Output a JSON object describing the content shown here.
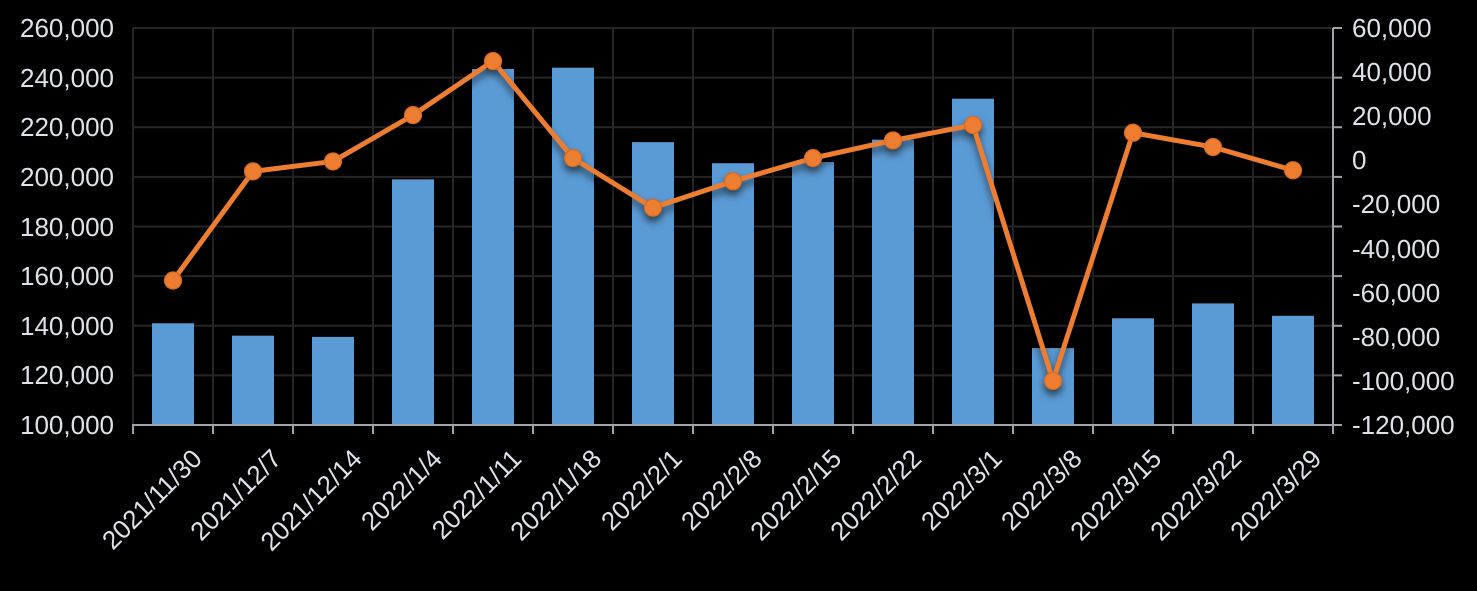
{
  "chart_data": {
    "type": "combo_bar_line",
    "title": "",
    "legend": "none",
    "grid": true,
    "categories": [
      "2021/11/30",
      "2021/12/7",
      "2021/12/14",
      "2022/1/4",
      "2022/1/11",
      "2022/1/18",
      "2022/2/1",
      "2022/2/8",
      "2022/2/15",
      "2022/2/22",
      "2022/3/1",
      "2022/3/8",
      "2022/3/15",
      "2022/3/22",
      "2022/3/29"
    ],
    "series": [
      {
        "name": "bars",
        "type": "bar",
        "axis": "left",
        "color": "#5B9BD5",
        "values": [
          141000,
          136000,
          135500,
          199000,
          243500,
          244000,
          214000,
          205500,
          206000,
          215000,
          231500,
          131000,
          143000,
          149000,
          144000
        ]
      },
      {
        "name": "line",
        "type": "line",
        "axis": "right",
        "color": "#ED7D31",
        "marker": "circle",
        "values": [
          -54500,
          -5000,
          -500,
          20500,
          45000,
          1000,
          -21500,
          -9500,
          1000,
          9000,
          16000,
          -100000,
          12500,
          6000,
          -4500
        ]
      }
    ],
    "left_axis": {
      "min": 100000,
      "max": 260000,
      "step": 20000,
      "tick_labels": [
        "260,000",
        "240,000",
        "220,000",
        "200,000",
        "180,000",
        "160,000",
        "140,000",
        "120,000",
        "100,000"
      ]
    },
    "right_axis": {
      "min": -120000,
      "max": 60000,
      "step": 20000,
      "tick_labels": [
        "60,000",
        "40,000",
        "20,000",
        "0",
        "-20,000",
        "-40,000",
        "-60,000",
        "-80,000",
        "-100,000",
        "-120,000"
      ]
    },
    "colors": {
      "background": "#000000",
      "bar": "#5B9BD5",
      "line": "#ED7D31",
      "marker_edge": "#D96B20",
      "gridline": "#262626",
      "axis_line": "#9EA4AA",
      "tick_text": "#DEE3EA"
    }
  }
}
